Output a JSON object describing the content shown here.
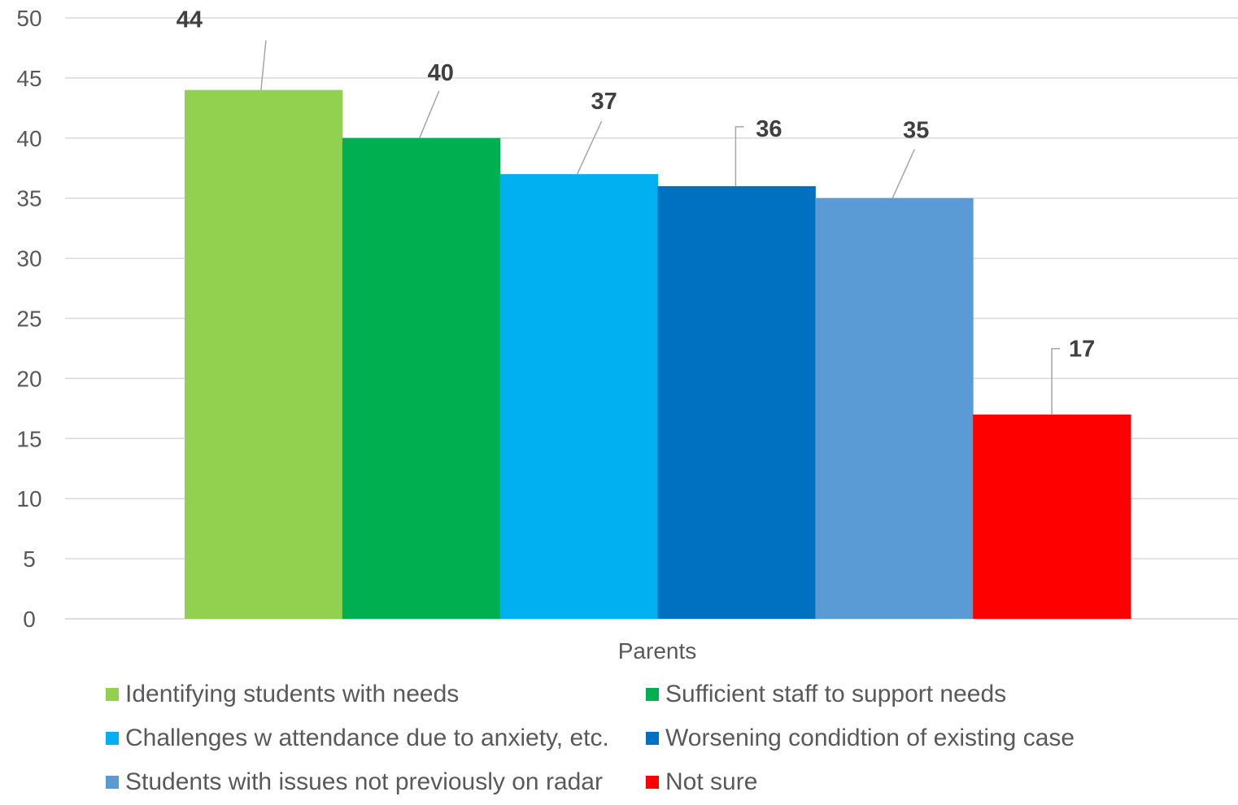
{
  "chart_data": {
    "type": "bar",
    "categories": [
      "Parents"
    ],
    "series": [
      {
        "name": "Identifying students with needs",
        "values": [
          44
        ],
        "color": "#92d050"
      },
      {
        "name": "Sufficient staff to support needs",
        "values": [
          40
        ],
        "color": "#00b050"
      },
      {
        "name": "Challenges w attendance due to anxiety, etc.",
        "values": [
          37
        ],
        "color": "#00b0f0"
      },
      {
        "name": "Worsening condidtion of existing case",
        "values": [
          36
        ],
        "color": "#0070c0"
      },
      {
        "name": "Students with issues not previously on radar",
        "values": [
          35
        ],
        "color": "#5b9bd5"
      },
      {
        "name": "Not sure",
        "values": [
          17
        ],
        "color": "#ff0000"
      }
    ],
    "ylim": [
      0,
      50
    ],
    "yticks": [
      "0",
      "5",
      "10",
      "15",
      "20",
      "25",
      "30",
      "35",
      "40",
      "45",
      "50"
    ],
    "data_labels": [
      "44",
      "40",
      "37",
      "36",
      "35",
      "17"
    ],
    "grid": true,
    "legend_position": "bottom"
  }
}
